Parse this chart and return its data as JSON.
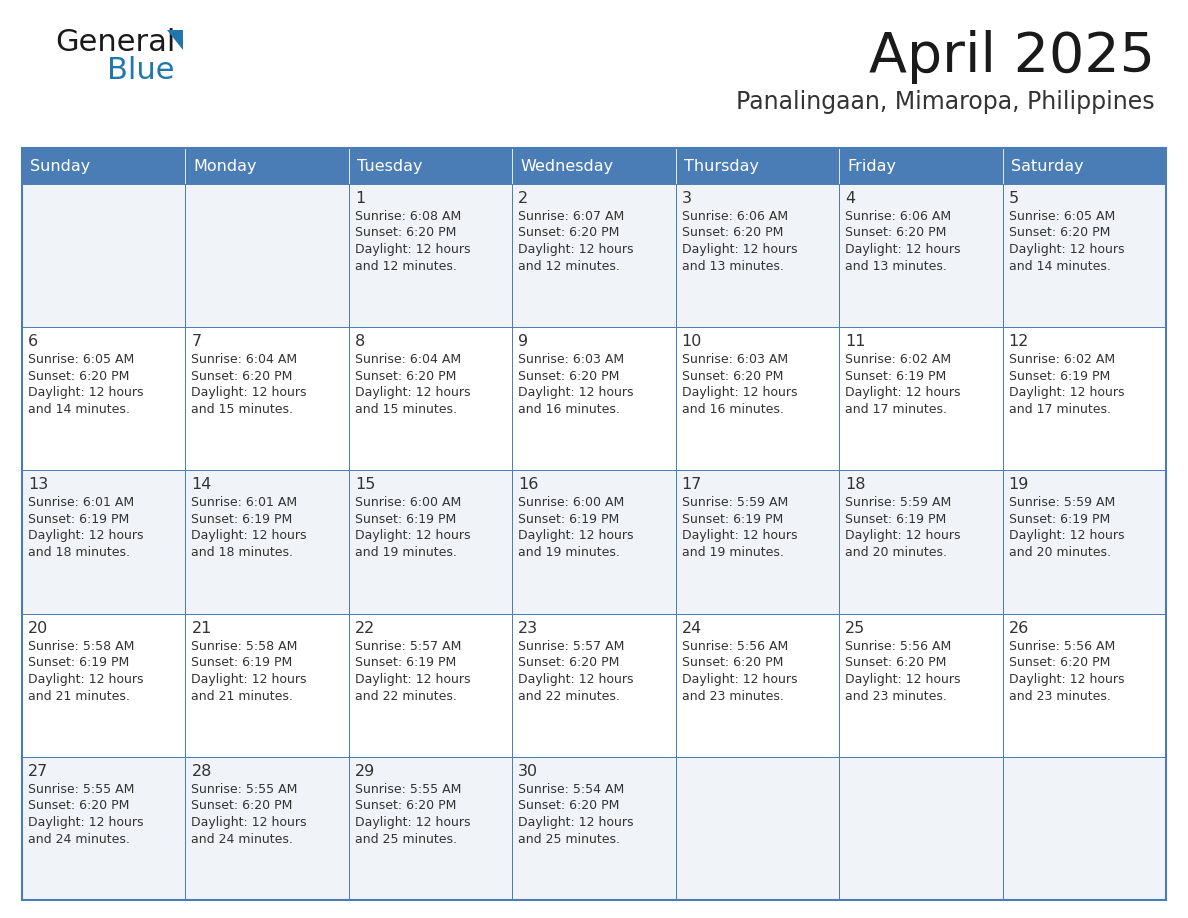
{
  "title": "April 2025",
  "subtitle": "Panalingaan, Mimaropa, Philippines",
  "days_of_week": [
    "Sunday",
    "Monday",
    "Tuesday",
    "Wednesday",
    "Thursday",
    "Friday",
    "Saturday"
  ],
  "header_bg": "#4A7DB5",
  "header_text_color": "#FFFFFF",
  "cell_bg_even": "#F0F4F8",
  "cell_bg_odd": "#FFFFFF",
  "cell_border_color": "#4A7DB5",
  "text_color": "#333333",
  "title_color": "#1a1a1a",
  "subtitle_color": "#333333",
  "calendar_data": [
    [
      {
        "day": "",
        "sunrise": "",
        "sunset": "",
        "daylight": ""
      },
      {
        "day": "",
        "sunrise": "",
        "sunset": "",
        "daylight": ""
      },
      {
        "day": "1",
        "sunrise": "6:08 AM",
        "sunset": "6:20 PM",
        "daylight": "12 hours\nand 12 minutes."
      },
      {
        "day": "2",
        "sunrise": "6:07 AM",
        "sunset": "6:20 PM",
        "daylight": "12 hours\nand 12 minutes."
      },
      {
        "day": "3",
        "sunrise": "6:06 AM",
        "sunset": "6:20 PM",
        "daylight": "12 hours\nand 13 minutes."
      },
      {
        "day": "4",
        "sunrise": "6:06 AM",
        "sunset": "6:20 PM",
        "daylight": "12 hours\nand 13 minutes."
      },
      {
        "day": "5",
        "sunrise": "6:05 AM",
        "sunset": "6:20 PM",
        "daylight": "12 hours\nand 14 minutes."
      }
    ],
    [
      {
        "day": "6",
        "sunrise": "6:05 AM",
        "sunset": "6:20 PM",
        "daylight": "12 hours\nand 14 minutes."
      },
      {
        "day": "7",
        "sunrise": "6:04 AM",
        "sunset": "6:20 PM",
        "daylight": "12 hours\nand 15 minutes."
      },
      {
        "day": "8",
        "sunrise": "6:04 AM",
        "sunset": "6:20 PM",
        "daylight": "12 hours\nand 15 minutes."
      },
      {
        "day": "9",
        "sunrise": "6:03 AM",
        "sunset": "6:20 PM",
        "daylight": "12 hours\nand 16 minutes."
      },
      {
        "day": "10",
        "sunrise": "6:03 AM",
        "sunset": "6:20 PM",
        "daylight": "12 hours\nand 16 minutes."
      },
      {
        "day": "11",
        "sunrise": "6:02 AM",
        "sunset": "6:19 PM",
        "daylight": "12 hours\nand 17 minutes."
      },
      {
        "day": "12",
        "sunrise": "6:02 AM",
        "sunset": "6:19 PM",
        "daylight": "12 hours\nand 17 minutes."
      }
    ],
    [
      {
        "day": "13",
        "sunrise": "6:01 AM",
        "sunset": "6:19 PM",
        "daylight": "12 hours\nand 18 minutes."
      },
      {
        "day": "14",
        "sunrise": "6:01 AM",
        "sunset": "6:19 PM",
        "daylight": "12 hours\nand 18 minutes."
      },
      {
        "day": "15",
        "sunrise": "6:00 AM",
        "sunset": "6:19 PM",
        "daylight": "12 hours\nand 19 minutes."
      },
      {
        "day": "16",
        "sunrise": "6:00 AM",
        "sunset": "6:19 PM",
        "daylight": "12 hours\nand 19 minutes."
      },
      {
        "day": "17",
        "sunrise": "5:59 AM",
        "sunset": "6:19 PM",
        "daylight": "12 hours\nand 19 minutes."
      },
      {
        "day": "18",
        "sunrise": "5:59 AM",
        "sunset": "6:19 PM",
        "daylight": "12 hours\nand 20 minutes."
      },
      {
        "day": "19",
        "sunrise": "5:59 AM",
        "sunset": "6:19 PM",
        "daylight": "12 hours\nand 20 minutes."
      }
    ],
    [
      {
        "day": "20",
        "sunrise": "5:58 AM",
        "sunset": "6:19 PM",
        "daylight": "12 hours\nand 21 minutes."
      },
      {
        "day": "21",
        "sunrise": "5:58 AM",
        "sunset": "6:19 PM",
        "daylight": "12 hours\nand 21 minutes."
      },
      {
        "day": "22",
        "sunrise": "5:57 AM",
        "sunset": "6:19 PM",
        "daylight": "12 hours\nand 22 minutes."
      },
      {
        "day": "23",
        "sunrise": "5:57 AM",
        "sunset": "6:20 PM",
        "daylight": "12 hours\nand 22 minutes."
      },
      {
        "day": "24",
        "sunrise": "5:56 AM",
        "sunset": "6:20 PM",
        "daylight": "12 hours\nand 23 minutes."
      },
      {
        "day": "25",
        "sunrise": "5:56 AM",
        "sunset": "6:20 PM",
        "daylight": "12 hours\nand 23 minutes."
      },
      {
        "day": "26",
        "sunrise": "5:56 AM",
        "sunset": "6:20 PM",
        "daylight": "12 hours\nand 23 minutes."
      }
    ],
    [
      {
        "day": "27",
        "sunrise": "5:55 AM",
        "sunset": "6:20 PM",
        "daylight": "12 hours\nand 24 minutes."
      },
      {
        "day": "28",
        "sunrise": "5:55 AM",
        "sunset": "6:20 PM",
        "daylight": "12 hours\nand 24 minutes."
      },
      {
        "day": "29",
        "sunrise": "5:55 AM",
        "sunset": "6:20 PM",
        "daylight": "12 hours\nand 25 minutes."
      },
      {
        "day": "30",
        "sunrise": "5:54 AM",
        "sunset": "6:20 PM",
        "daylight": "12 hours\nand 25 minutes."
      },
      {
        "day": "",
        "sunrise": "",
        "sunset": "",
        "daylight": ""
      },
      {
        "day": "",
        "sunrise": "",
        "sunset": "",
        "daylight": ""
      },
      {
        "day": "",
        "sunrise": "",
        "sunset": "",
        "daylight": ""
      }
    ]
  ],
  "logo_text_general": "General",
  "logo_text_blue": "Blue",
  "logo_color_general": "#1a1a1a",
  "logo_color_blue": "#2176AE",
  "logo_triangle_color": "#2176AE"
}
